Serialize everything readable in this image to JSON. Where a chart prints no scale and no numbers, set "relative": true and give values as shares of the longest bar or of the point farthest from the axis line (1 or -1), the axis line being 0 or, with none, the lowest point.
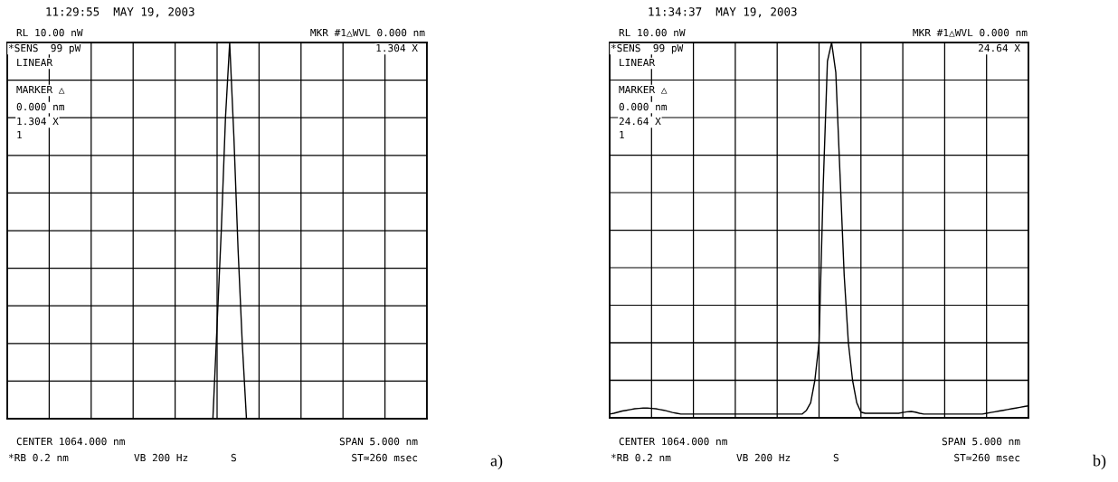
{
  "chart_data": [
    {
      "type": "line",
      "title": "11:29:55  MAY 19, 2003",
      "relative": true,
      "grid": true,
      "categories": [
        null,
        null,
        null,
        null,
        null,
        null,
        null,
        null,
        null,
        null,
        null,
        null,
        null,
        null,
        null,
        null,
        null,
        null,
        null,
        null,
        null,
        null,
        null,
        null,
        null,
        null,
        null,
        null,
        null,
        null,
        null,
        null,
        null,
        null,
        null,
        null,
        null,
        null,
        null,
        null,
        null,
        null,
        null,
        null,
        null,
        null,
        null,
        null,
        null,
        null,
        null,
        null,
        null,
        null,
        null,
        null,
        null,
        null,
        null,
        null,
        null,
        null,
        null,
        null,
        null,
        null,
        null,
        null,
        null,
        null,
        null,
        null,
        null,
        null,
        null,
        null,
        null,
        null,
        null,
        null,
        null,
        null,
        null,
        null,
        null,
        null,
        null,
        null,
        null,
        null,
        null,
        null,
        null,
        null,
        null,
        null,
        null,
        null,
        null,
        null,
        null
      ],
      "series": [
        {
          "color": "#000000",
          "values": [
            0,
            0,
            0,
            0,
            0,
            0,
            0,
            0,
            0,
            0,
            0,
            0,
            0,
            0,
            0,
            0,
            0,
            0,
            0,
            0,
            0,
            0,
            0,
            0,
            0,
            0,
            0,
            0,
            0,
            0,
            0,
            0,
            0,
            0,
            0,
            0,
            0,
            0,
            0,
            0,
            0,
            0,
            0,
            0,
            0,
            0,
            0,
            0,
            0,
            0,
            0.25,
            0.5,
            0.8,
            1,
            0.75,
            0.45,
            0.2,
            0,
            0,
            0,
            0,
            0,
            0,
            0,
            0,
            0,
            0,
            0,
            0,
            0,
            0,
            0,
            0,
            0,
            0,
            0,
            0,
            0,
            0,
            0,
            0,
            0,
            0,
            0,
            0,
            0,
            0,
            0,
            0,
            0,
            0,
            0,
            0,
            0,
            0,
            0,
            0,
            0,
            0,
            0,
            0
          ]
        }
      ],
      "annotations": [
        "RL 10.00 nW",
        "MKR #1△WVL 0.000 nm",
        "*SENS  99 pW",
        "LINEAR",
        "1.304 X",
        "MARKER △",
        "0.000 nm",
        "1.304 X",
        "1",
        "CENTER 1064.000 nm",
        "SPAN 5.000 nm",
        "*RB 0.2 nm",
        "VB 200 Hz",
        "S",
        "ST≃260 msec",
        "a)"
      ]
    },
    {
      "type": "line",
      "title": "11:34:37  MAY 19, 2003",
      "relative": true,
      "grid": true,
      "categories": [
        null,
        null,
        null,
        null,
        null,
        null,
        null,
        null,
        null,
        null,
        null,
        null,
        null,
        null,
        null,
        null,
        null,
        null,
        null,
        null,
        null,
        null,
        null,
        null,
        null,
        null,
        null,
        null,
        null,
        null,
        null,
        null,
        null,
        null,
        null,
        null,
        null,
        null,
        null,
        null,
        null,
        null,
        null,
        null,
        null,
        null,
        null,
        null,
        null,
        null,
        null,
        null,
        null,
        null,
        null,
        null,
        null,
        null,
        null,
        null,
        null,
        null,
        null,
        null,
        null,
        null,
        null,
        null,
        null,
        null,
        null,
        null,
        null,
        null,
        null,
        null,
        null,
        null,
        null,
        null,
        null,
        null,
        null,
        null,
        null,
        null,
        null,
        null,
        null,
        null,
        null,
        null,
        null,
        null,
        null,
        null,
        null,
        null,
        null,
        null,
        null
      ],
      "series": [
        {
          "color": "#000000",
          "values": [
            0.01,
            0.012,
            0.015,
            0.018,
            0.02,
            0.022,
            0.024,
            0.025,
            0.026,
            0.026,
            0.025,
            0.024,
            0.022,
            0.02,
            0.017,
            0.014,
            0.012,
            0.01,
            0.01,
            0.01,
            0.01,
            0.01,
            0.01,
            0.01,
            0.01,
            0.01,
            0.01,
            0.01,
            0.01,
            0.01,
            0.01,
            0.01,
            0.01,
            0.01,
            0.01,
            0.01,
            0.01,
            0.01,
            0.01,
            0.01,
            0.01,
            0.01,
            0.01,
            0.01,
            0.01,
            0.01,
            0.01,
            0.02,
            0.04,
            0.1,
            0.2,
            0.62,
            0.95,
            1,
            0.92,
            0.65,
            0.38,
            0.2,
            0.1,
            0.04,
            0.015,
            0.012,
            0.012,
            0.012,
            0.012,
            0.012,
            0.012,
            0.012,
            0.012,
            0.012,
            0.014,
            0.016,
            0.017,
            0.015,
            0.012,
            0.01,
            0.01,
            0.01,
            0.01,
            0.01,
            0.01,
            0.01,
            0.01,
            0.01,
            0.01,
            0.01,
            0.01,
            0.01,
            0.01,
            0.01,
            0.012,
            0.014,
            0.016,
            0.018,
            0.02,
            0.022,
            0.024,
            0.026,
            0.028,
            0.03,
            0.032
          ]
        }
      ],
      "annotations": [
        "RL 10.00 nW",
        "MKR #1△WVL 0.000 nm",
        "*SENS  99 pW",
        "LINEAR",
        "24.64 X",
        "MARKER △",
        "0.000 nm",
        "24.64 X",
        "1",
        "CENTER 1064.000 nm",
        "SPAN 5.000 nm",
        "*RB 0.2 nm",
        "VB 200 Hz",
        "S",
        "ST≃260 msec",
        "b)"
      ]
    }
  ]
}
